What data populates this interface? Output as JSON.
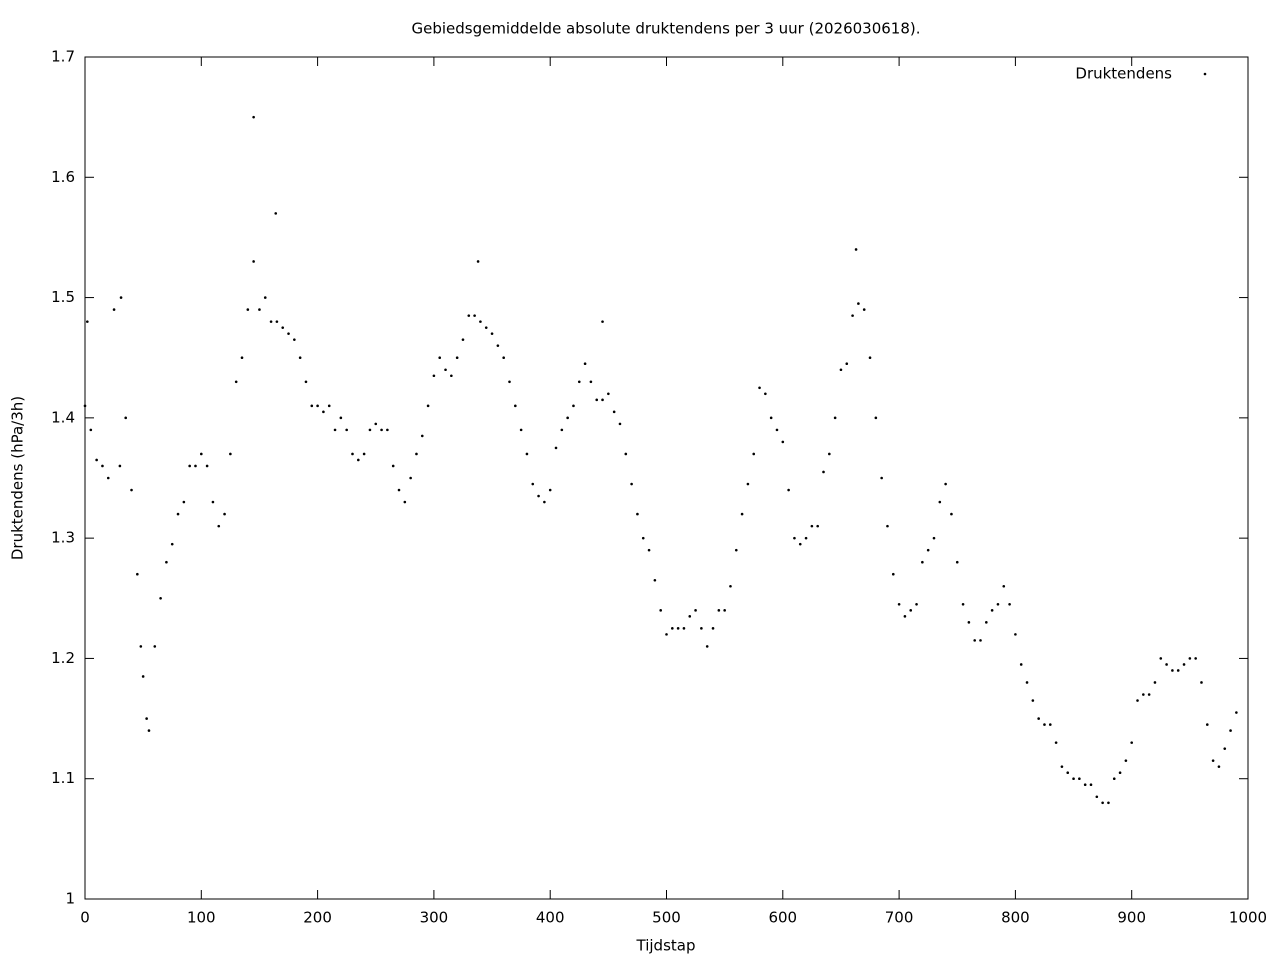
{
  "chart_data": {
    "type": "scatter",
    "title": "Gebiedsgemiddelde absolute druktendens per 3 uur (2026030618).",
    "xlabel": "Tijdstap",
    "ylabel": "Druktendens (hPa/3h)",
    "xlim": [
      0,
      1000
    ],
    "xticks": [
      0,
      100,
      200,
      300,
      400,
      500,
      600,
      700,
      800,
      900,
      1000
    ],
    "ylim": [
      1,
      1.7
    ],
    "yticks": [
      1,
      1.1,
      1.2,
      1.3,
      1.4,
      1.5,
      1.6,
      1.7
    ],
    "legend": "top-right",
    "series": [
      {
        "name": "Druktendens",
        "color": "#000000",
        "x": [
          0,
          2,
          5,
          10,
          15,
          20,
          25,
          30,
          31,
          35,
          40,
          45,
          48,
          50,
          53,
          55,
          60,
          65,
          70,
          75,
          80,
          85,
          90,
          95,
          100,
          105,
          110,
          115,
          120,
          125,
          130,
          135,
          140,
          145,
          145,
          150,
          155,
          160,
          164,
          165,
          170,
          175,
          180,
          185,
          190,
          195,
          200,
          205,
          210,
          215,
          220,
          225,
          230,
          235,
          240,
          245,
          250,
          255,
          260,
          265,
          270,
          275,
          280,
          285,
          290,
          295,
          300,
          305,
          310,
          315,
          320,
          325,
          330,
          335,
          338,
          340,
          345,
          350,
          355,
          360,
          365,
          370,
          375,
          380,
          385,
          390,
          395,
          400,
          405,
          410,
          415,
          420,
          425,
          430,
          435,
          440,
          445,
          445,
          450,
          455,
          460,
          465,
          470,
          475,
          480,
          485,
          490,
          495,
          500,
          505,
          510,
          515,
          520,
          525,
          530,
          535,
          540,
          545,
          550,
          555,
          560,
          565,
          570,
          575,
          580,
          585,
          590,
          595,
          600,
          605,
          610,
          615,
          620,
          625,
          630,
          635,
          640,
          645,
          650,
          655,
          660,
          663,
          665,
          670,
          675,
          680,
          685,
          690,
          695,
          700,
          705,
          710,
          715,
          720,
          725,
          730,
          735,
          740,
          745,
          750,
          755,
          760,
          765,
          770,
          775,
          780,
          785,
          790,
          795,
          800,
          805,
          810,
          815,
          820,
          825,
          830,
          835,
          840,
          845,
          850,
          855,
          860,
          865,
          870,
          875,
          880,
          885,
          890,
          895,
          900,
          905,
          910,
          915,
          920,
          925,
          930,
          935,
          940,
          945,
          950,
          955,
          960,
          965,
          970,
          975,
          980,
          985,
          990
        ],
        "values": [
          1.41,
          1.48,
          1.39,
          1.365,
          1.36,
          1.35,
          1.49,
          1.36,
          1.5,
          1.4,
          1.34,
          1.27,
          1.21,
          1.185,
          1.15,
          1.14,
          1.21,
          1.25,
          1.28,
          1.295,
          1.32,
          1.33,
          1.36,
          1.36,
          1.37,
          1.36,
          1.33,
          1.31,
          1.32,
          1.37,
          1.43,
          1.45,
          1.49,
          1.53,
          1.65,
          1.49,
          1.5,
          1.48,
          1.57,
          1.48,
          1.475,
          1.47,
          1.465,
          1.45,
          1.43,
          1.41,
          1.41,
          1.405,
          1.41,
          1.39,
          1.4,
          1.39,
          1.37,
          1.365,
          1.37,
          1.39,
          1.395,
          1.39,
          1.39,
          1.36,
          1.34,
          1.33,
          1.35,
          1.37,
          1.385,
          1.41,
          1.435,
          1.45,
          1.44,
          1.435,
          1.45,
          1.465,
          1.485,
          1.485,
          1.53,
          1.48,
          1.475,
          1.47,
          1.46,
          1.45,
          1.43,
          1.41,
          1.39,
          1.37,
          1.345,
          1.335,
          1.33,
          1.34,
          1.375,
          1.39,
          1.4,
          1.41,
          1.43,
          1.445,
          1.43,
          1.415,
          1.415,
          1.48,
          1.42,
          1.405,
          1.395,
          1.37,
          1.345,
          1.32,
          1.3,
          1.29,
          1.265,
          1.24,
          1.22,
          1.225,
          1.225,
          1.225,
          1.235,
          1.24,
          1.225,
          1.21,
          1.225,
          1.24,
          1.24,
          1.26,
          1.29,
          1.32,
          1.345,
          1.37,
          1.425,
          1.42,
          1.4,
          1.39,
          1.38,
          1.34,
          1.3,
          1.295,
          1.3,
          1.31,
          1.31,
          1.355,
          1.37,
          1.4,
          1.44,
          1.445,
          1.485,
          1.54,
          1.495,
          1.49,
          1.45,
          1.4,
          1.35,
          1.31,
          1.27,
          1.245,
          1.235,
          1.24,
          1.245,
          1.28,
          1.29,
          1.3,
          1.33,
          1.345,
          1.32,
          1.28,
          1.245,
          1.23,
          1.215,
          1.215,
          1.23,
          1.24,
          1.245,
          1.26,
          1.245,
          1.22,
          1.195,
          1.18,
          1.165,
          1.15,
          1.145,
          1.145,
          1.13,
          1.11,
          1.105,
          1.1,
          1.1,
          1.095,
          1.095,
          1.085,
          1.08,
          1.08,
          1.1,
          1.105,
          1.115,
          1.13,
          1.165,
          1.17,
          1.17,
          1.18,
          1.2,
          1.195,
          1.19,
          1.19,
          1.195,
          1.2,
          1.2,
          1.18,
          1.145,
          1.115,
          1.11,
          1.125,
          1.14,
          1.155
        ]
      }
    ]
  }
}
